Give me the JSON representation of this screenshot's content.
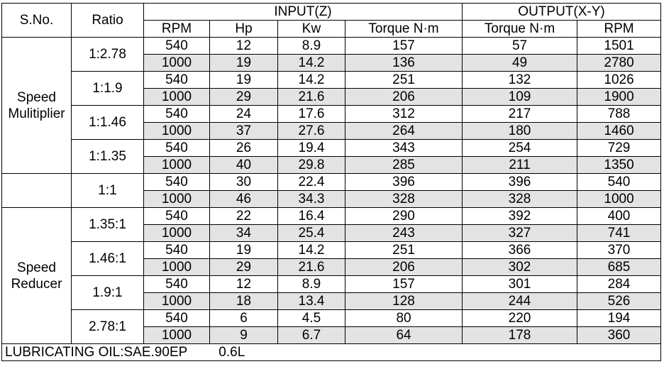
{
  "header": {
    "sno": "S.No.",
    "ratio": "Ratio",
    "input_group": "INPUT(Z)",
    "output_group": "OUTPUT(X-Y)",
    "input_cols": [
      "RPM",
      "Hp",
      "Kw",
      "Torque N·m"
    ],
    "output_cols": [
      "Torque N·m",
      "RPM"
    ]
  },
  "groups": [
    {
      "name_lines": [
        "Speed",
        "Mulitiplier"
      ],
      "ratios": [
        {
          "ratio": "1:2.78",
          "rows": [
            [
              "540",
              "12",
              "8.9",
              "157",
              "57",
              "1501"
            ],
            [
              "1000",
              "19",
              "14.2",
              "136",
              "49",
              "2780"
            ]
          ]
        },
        {
          "ratio": "1:1.9",
          "rows": [
            [
              "540",
              "19",
              "14.2",
              "251",
              "132",
              "1026"
            ],
            [
              "1000",
              "29",
              "21.6",
              "206",
              "109",
              "1900"
            ]
          ]
        },
        {
          "ratio": "1:1.46",
          "rows": [
            [
              "540",
              "24",
              "17.6",
              "312",
              "217",
              "788"
            ],
            [
              "1000",
              "37",
              "27.6",
              "264",
              "180",
              "1460"
            ]
          ]
        },
        {
          "ratio": "1:1.35",
          "rows": [
            [
              "540",
              "26",
              "19.4",
              "343",
              "254",
              "729"
            ],
            [
              "1000",
              "40",
              "29.8",
              "285",
              "211",
              "1350"
            ]
          ]
        }
      ]
    },
    {
      "name_lines": [],
      "ratios": [
        {
          "ratio": "1:1",
          "rows": [
            [
              "540",
              "30",
              "22.4",
              "396",
              "396",
              "540"
            ],
            [
              "1000",
              "46",
              "34.3",
              "328",
              "328",
              "1000"
            ]
          ]
        }
      ]
    },
    {
      "name_lines": [
        "Speed",
        "Reducer"
      ],
      "ratios": [
        {
          "ratio": "1.35:1",
          "rows": [
            [
              "540",
              "22",
              "16.4",
              "290",
              "392",
              "400"
            ],
            [
              "1000",
              "34",
              "25.4",
              "243",
              "327",
              "741"
            ]
          ]
        },
        {
          "ratio": "1.46:1",
          "rows": [
            [
              "540",
              "19",
              "14.2",
              "251",
              "366",
              "370"
            ],
            [
              "1000",
              "29",
              "21.6",
              "206",
              "302",
              "685"
            ]
          ]
        },
        {
          "ratio": "1.9:1",
          "rows": [
            [
              "540",
              "12",
              "8.9",
              "157",
              "301",
              "284"
            ],
            [
              "1000",
              "18",
              "13.4",
              "128",
              "244",
              "526"
            ]
          ]
        },
        {
          "ratio": "2.78:1",
          "rows": [
            [
              "540",
              "6",
              "4.5",
              "80",
              "220",
              "194"
            ],
            [
              "1000",
              "9",
              "6.7",
              "64",
              "178",
              "360"
            ]
          ]
        }
      ]
    }
  ],
  "footer": {
    "oil": "LUBRICATING OIL:SAE.90EP",
    "quantity": "0.6L"
  },
  "colors": {
    "shaded_row": "#e3e3e3",
    "border": "#000000"
  }
}
